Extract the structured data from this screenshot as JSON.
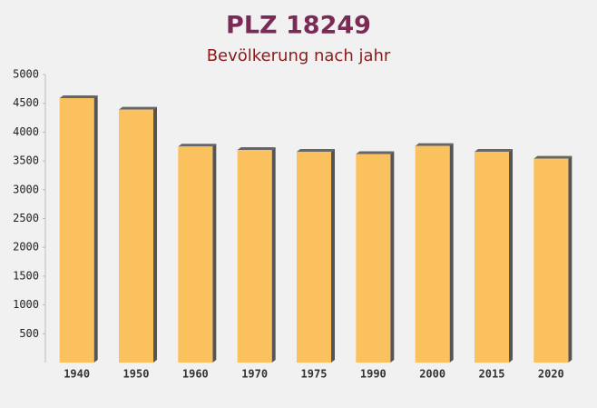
{
  "chart_data": {
    "type": "bar",
    "title": "PLZ 18249",
    "subtitle": "Bevölkerung nach jahr",
    "categories": [
      "1940",
      "1950",
      "1960",
      "1970",
      "1975",
      "1990",
      "2000",
      "2015",
      "2020"
    ],
    "values": [
      4590,
      4390,
      3750,
      3690,
      3660,
      3620,
      3760,
      3660,
      3540
    ],
    "color": "#fbc15e",
    "ylim": [
      0,
      5000
    ],
    "yticks": [
      500,
      1000,
      1500,
      2000,
      2500,
      3000,
      3500,
      4000,
      4500,
      5000
    ]
  }
}
